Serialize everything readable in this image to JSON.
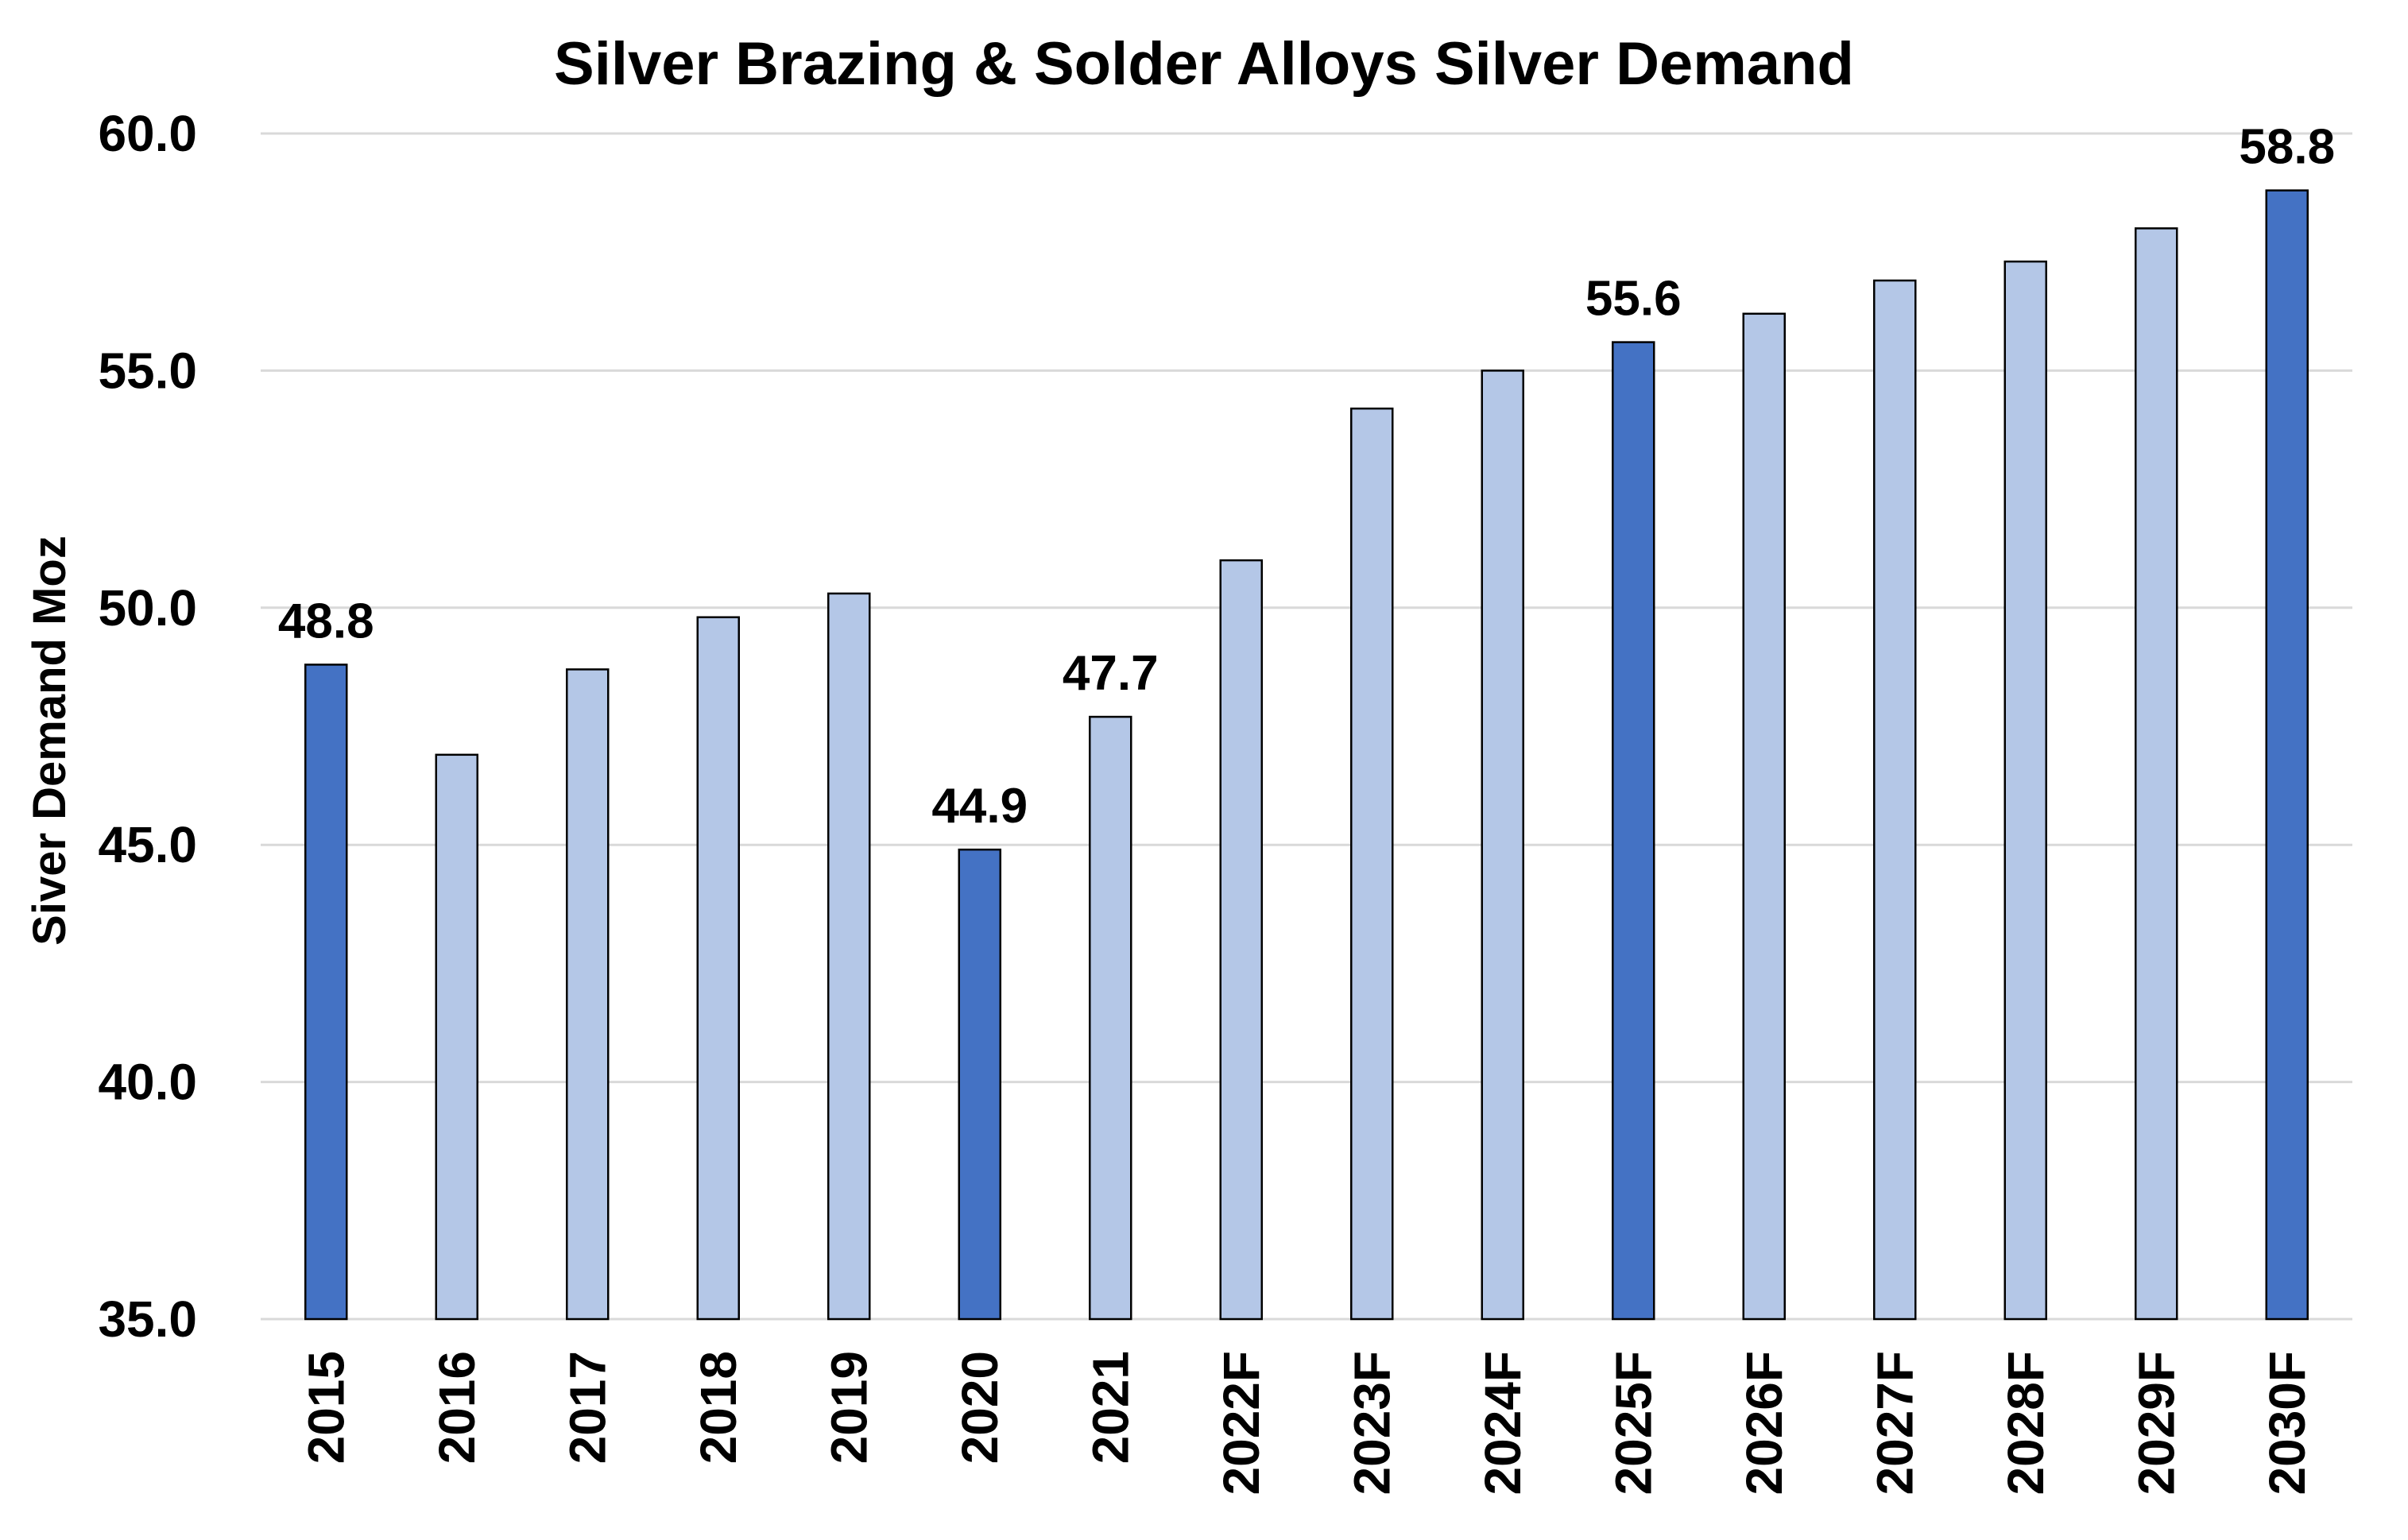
{
  "chart_data": {
    "type": "bar",
    "title": "Silver Brazing & Solder Alloys Silver Demand",
    "xlabel": "",
    "ylabel": "Siver Demand Moz",
    "ylim": [
      35.0,
      60.0
    ],
    "yticks": [
      "35.0",
      "40.0",
      "45.0",
      "50.0",
      "55.0",
      "60.0"
    ],
    "grid": true,
    "legend": "none",
    "categories": [
      "2015",
      "2016",
      "2017",
      "2018",
      "2019",
      "2020",
      "2021",
      "2022F",
      "2023F",
      "2024F",
      "2025F",
      "2026F",
      "2027F",
      "2028F",
      "2029F",
      "2030F"
    ],
    "series": [
      {
        "values": [
          48.8,
          46.9,
          48.7,
          49.8,
          50.3,
          44.9,
          47.7,
          51.0,
          54.2,
          55.0,
          55.6,
          56.2,
          56.9,
          57.3,
          58.0,
          58.8
        ]
      }
    ],
    "highlighted_categories": [
      "2015",
      "2020",
      "2025F",
      "2030F"
    ],
    "data_labels": [
      {
        "category": "2015",
        "text": "48.8"
      },
      {
        "category": "2020",
        "text": "44.9"
      },
      {
        "category": "2021",
        "text": "47.7"
      },
      {
        "category": "2025F",
        "text": "55.6"
      },
      {
        "category": "2030F",
        "text": "58.8"
      }
    ],
    "colors": {
      "highlight_bar": "#4472C4",
      "regular_bar": "#B4C7E7",
      "bar_outline": "#000000",
      "gridline": "#D9D9D9"
    }
  }
}
